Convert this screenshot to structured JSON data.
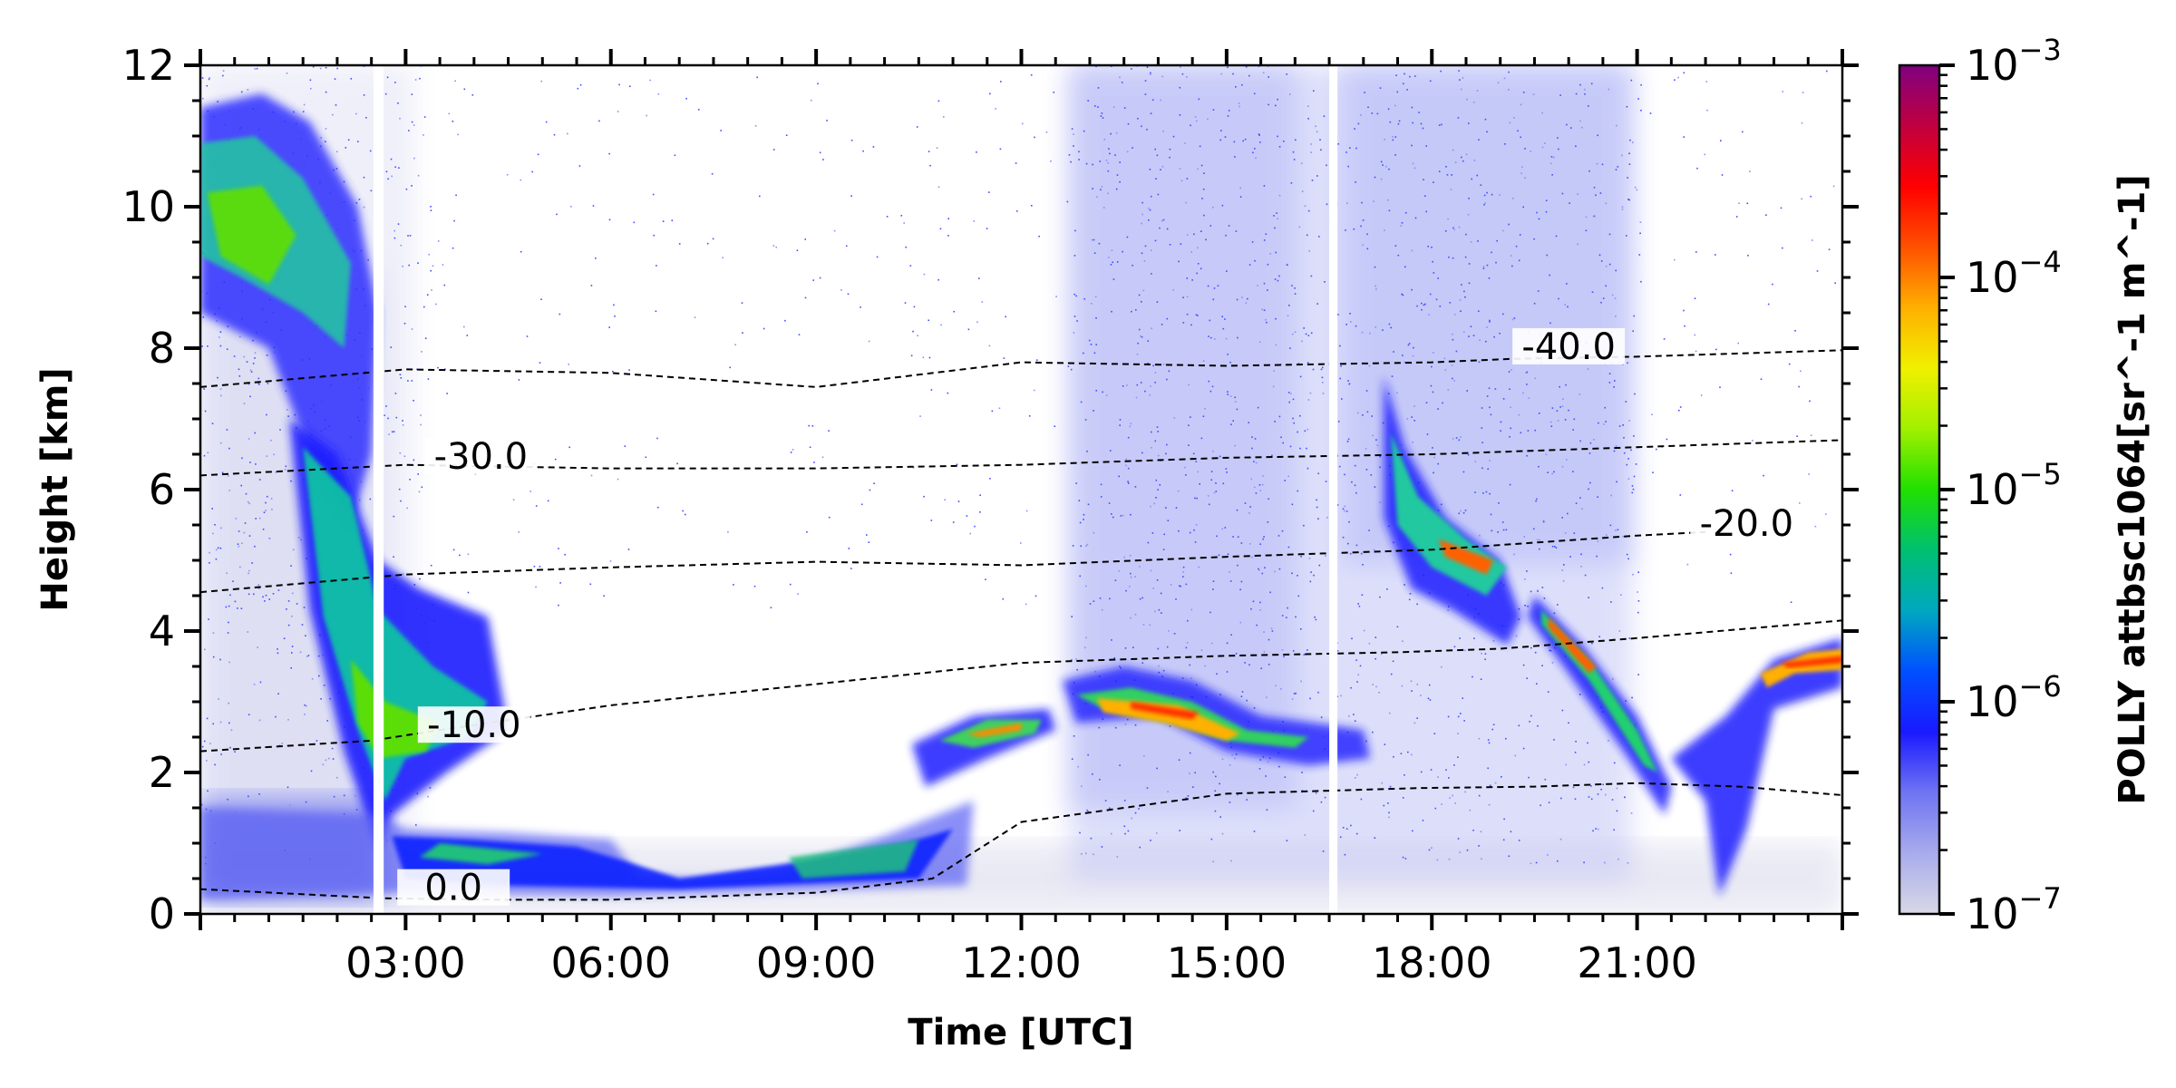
{
  "chart_data": {
    "type": "heatmap",
    "xlabel": "Time [UTC]",
    "ylabel": "Height [km]",
    "colorbar_label": "POLLY attbsc1064[sr^-1 m^-1]",
    "xlim_hours": [
      0.0,
      24.0
    ],
    "ylim_km": [
      0,
      12
    ],
    "x_ticks": [
      {
        "hour": 3,
        "label": "03:00"
      },
      {
        "hour": 6,
        "label": "06:00"
      },
      {
        "hour": 9,
        "label": "09:00"
      },
      {
        "hour": 12,
        "label": "12:00"
      },
      {
        "hour": 15,
        "label": "15:00"
      },
      {
        "hour": 18,
        "label": "18:00"
      },
      {
        "hour": 21,
        "label": "21:00"
      }
    ],
    "y_ticks": [
      {
        "value": 0,
        "label": "0"
      },
      {
        "value": 2,
        "label": "2"
      },
      {
        "value": 4,
        "label": "4"
      },
      {
        "value": 6,
        "label": "6"
      },
      {
        "value": 8,
        "label": "8"
      },
      {
        "value": 10,
        "label": "10"
      },
      {
        "value": 12,
        "label": "12"
      }
    ],
    "colorbar": {
      "scale": "log",
      "ticks": [
        {
          "exp": -7,
          "base": "10",
          "sup": "−7"
        },
        {
          "exp": -6,
          "base": "10",
          "sup": "−6"
        },
        {
          "exp": -5,
          "base": "10",
          "sup": "−5"
        },
        {
          "exp": -4,
          "base": "10",
          "sup": "−4"
        },
        {
          "exp": -3,
          "base": "10",
          "sup": "−3"
        }
      ],
      "colors": [
        "#d8d8e6",
        "#a9acec",
        "#6f74f2",
        "#1a1aff",
        "#0050ff",
        "#00a8c0",
        "#00c070",
        "#20e000",
        "#a0f000",
        "#f0f000",
        "#ffb000",
        "#ff5000",
        "#ff0000",
        "#c00040",
        "#800080"
      ]
    },
    "temperature_contours": [
      {
        "label": "0.0",
        "label_at": [
          3.7,
          0.3
        ],
        "points": [
          [
            0,
            0.35
          ],
          [
            2.7,
            0.22
          ],
          [
            4.4,
            0.2
          ],
          [
            6,
            0.2
          ],
          [
            9,
            0.3
          ],
          [
            10.7,
            0.5
          ],
          [
            12,
            1.3
          ],
          [
            13.5,
            1.5
          ],
          [
            15,
            1.7
          ],
          [
            17.8,
            1.78
          ],
          [
            19.5,
            1.8
          ],
          [
            21,
            1.85
          ],
          [
            22.5,
            1.8
          ],
          [
            24,
            1.68
          ]
        ]
      },
      {
        "label": "-10.0",
        "label_at": [
          4.0,
          2.6
        ],
        "points": [
          [
            0,
            2.3
          ],
          [
            2.5,
            2.45
          ],
          [
            3.5,
            2.6
          ],
          [
            6,
            2.95
          ],
          [
            9,
            3.25
          ],
          [
            12,
            3.55
          ],
          [
            15,
            3.65
          ],
          [
            17.5,
            3.7
          ],
          [
            19,
            3.75
          ],
          [
            21,
            3.9
          ],
          [
            22.8,
            4.05
          ],
          [
            24,
            4.15
          ]
        ]
      },
      {
        "label": "-20.0",
        "label_at": [
          22.6,
          5.45
        ],
        "points": [
          [
            0,
            4.55
          ],
          [
            3,
            4.8
          ],
          [
            6,
            4.9
          ],
          [
            9,
            4.98
          ],
          [
            12,
            4.93
          ],
          [
            15,
            5.05
          ],
          [
            18,
            5.15
          ],
          [
            21,
            5.35
          ],
          [
            22,
            5.4
          ]
        ]
      },
      {
        "label": "-30.0",
        "label_at": [
          4.1,
          6.4
        ],
        "points": [
          [
            0,
            6.2
          ],
          [
            3,
            6.35
          ],
          [
            6,
            6.3
          ],
          [
            9,
            6.3
          ],
          [
            12,
            6.35
          ],
          [
            15,
            6.45
          ],
          [
            18,
            6.5
          ],
          [
            21,
            6.6
          ],
          [
            24,
            6.7
          ]
        ]
      },
      {
        "label": "-40.0",
        "label_at": [
          20.0,
          7.95
        ],
        "points": [
          [
            0,
            7.45
          ],
          [
            3,
            7.7
          ],
          [
            6,
            7.65
          ],
          [
            9,
            7.45
          ],
          [
            12,
            7.8
          ],
          [
            15,
            7.75
          ],
          [
            18,
            7.8
          ],
          [
            19.2,
            7.85
          ],
          [
            21,
            7.88
          ],
          [
            24,
            7.97
          ]
        ]
      }
    ]
  }
}
